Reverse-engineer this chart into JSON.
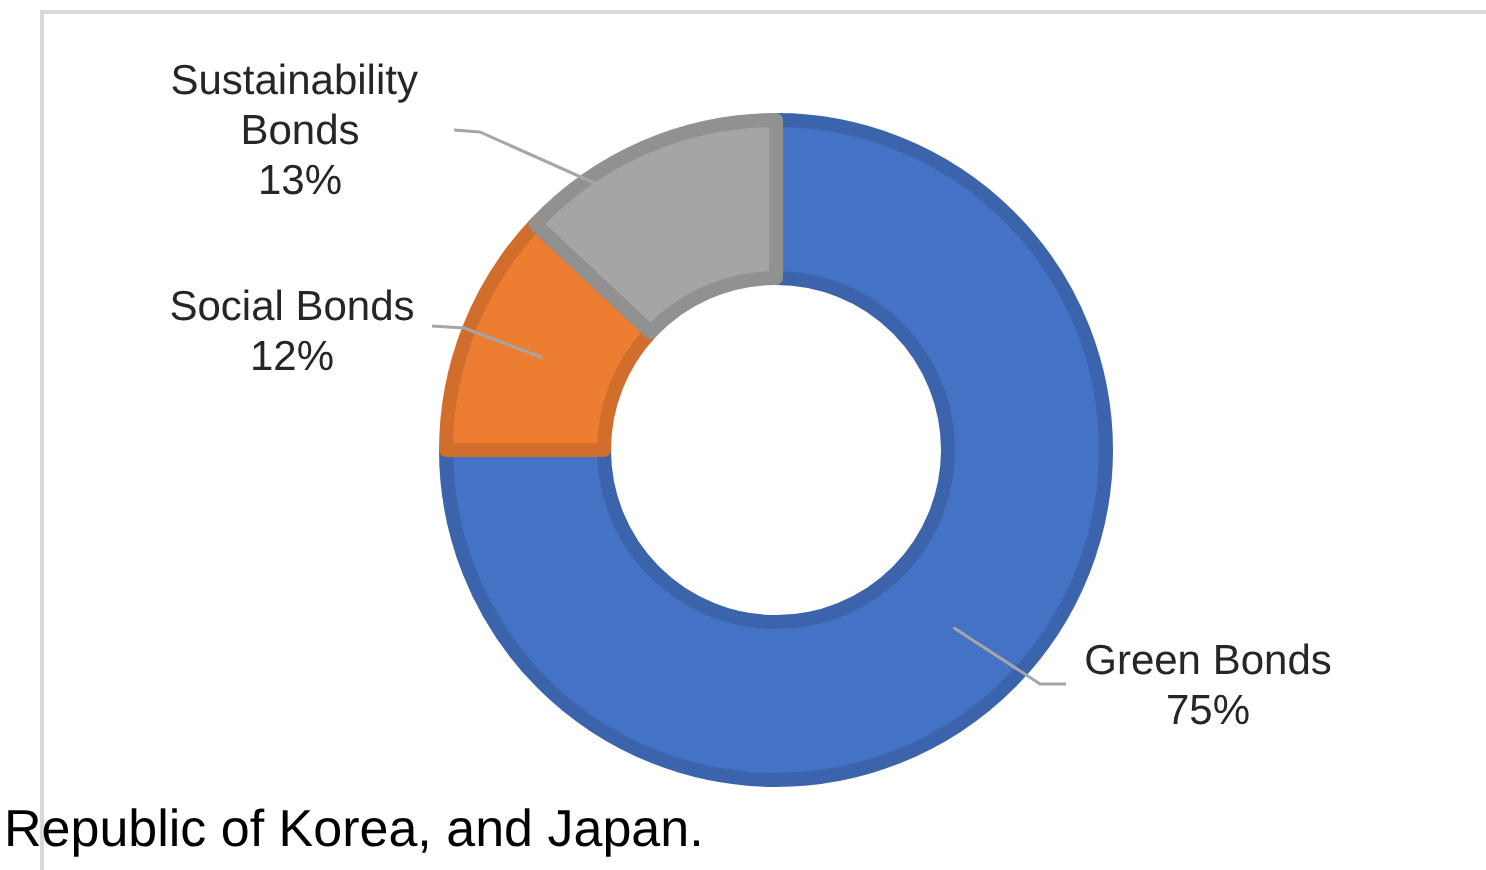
{
  "chart_data": {
    "type": "donut",
    "categories": [
      "Green Bonds",
      "Social Bonds",
      "Sustainability Bonds"
    ],
    "values": [
      75,
      12,
      13
    ],
    "colors": [
      "#4472c4",
      "#ed7d31",
      "#a5a5a5"
    ],
    "value_labels": [
      "75%",
      "12%",
      "13%"
    ],
    "legend": false,
    "annotations": [
      "Republic of Korea, and Japan."
    ]
  }
}
